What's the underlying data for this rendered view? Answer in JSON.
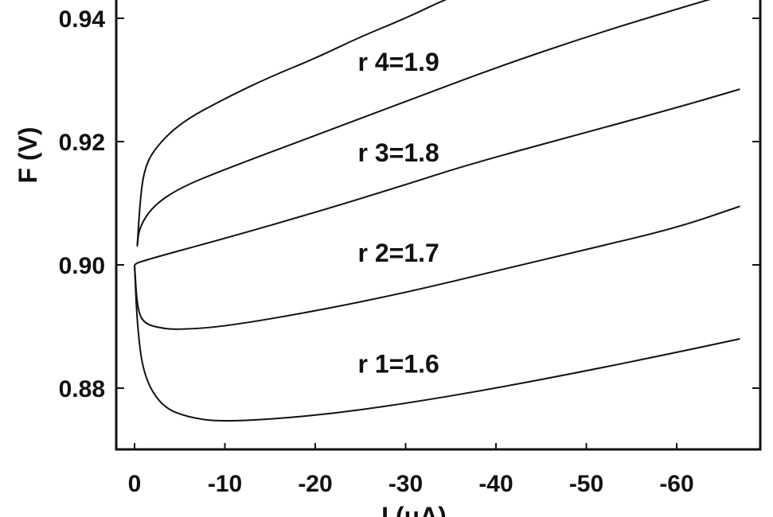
{
  "chart_data": {
    "type": "line",
    "title": "",
    "xlabel": "I (μA)",
    "ylabel": "F (V)",
    "xlim": [
      0,
      -70
    ],
    "ylim": [
      0.87,
      0.943
    ],
    "x_ticks": [
      "0",
      "-10",
      "-20",
      "-30",
      "-40",
      "-50",
      "-60"
    ],
    "x_tick_values": [
      0,
      -10,
      -20,
      -30,
      -40,
      -50,
      -60
    ],
    "y_ticks": [
      "0.88",
      "0.90",
      "0.92",
      "0.94"
    ],
    "y_tick_values": [
      0.88,
      0.9,
      0.92,
      0.94
    ],
    "grid": false,
    "line_color": "#111111",
    "series": [
      {
        "name": "r 1=1.6",
        "label_at": [
          -30,
          0.8825
        ],
        "points": [
          [
            0,
            0.9
          ],
          [
            -0.3,
            0.89
          ],
          [
            -1,
            0.882
          ],
          [
            -3,
            0.877
          ],
          [
            -6,
            0.8752
          ],
          [
            -10,
            0.8745
          ],
          [
            -20,
            0.8755
          ],
          [
            -30,
            0.8775
          ],
          [
            -40,
            0.88
          ],
          [
            -50,
            0.8828
          ],
          [
            -60,
            0.8858
          ],
          [
            -67,
            0.888
          ]
        ]
      },
      {
        "name": "r 2=1.7",
        "label_at": [
          -30,
          0.9005
        ],
        "points": [
          [
            0,
            0.9
          ],
          [
            -0.3,
            0.893
          ],
          [
            -1,
            0.8905
          ],
          [
            -3,
            0.8897
          ],
          [
            -5,
            0.8895
          ],
          [
            -10,
            0.89
          ],
          [
            -20,
            0.8925
          ],
          [
            -30,
            0.8955
          ],
          [
            -40,
            0.899
          ],
          [
            -50,
            0.9025
          ],
          [
            -60,
            0.906
          ],
          [
            -67,
            0.9095
          ]
        ]
      },
      {
        "name": "r 3=1.8",
        "label_at": [
          -30,
          0.9168
        ],
        "points": [
          [
            0,
            0.9
          ],
          [
            -0.5,
            0.9005
          ],
          [
            -10,
            0.9043
          ],
          [
            -20,
            0.9085
          ],
          [
            -30,
            0.913
          ],
          [
            -37,
            0.9163
          ],
          [
            -50,
            0.9215
          ],
          [
            -60,
            0.9255
          ],
          [
            -67,
            0.9285
          ]
        ]
      },
      {
        "name": "r 4=1.9",
        "label_at": [
          -30,
          0.9315
        ],
        "points": [
          [
            -0.3,
            0.903
          ],
          [
            -0.5,
            0.906
          ],
          [
            -2,
            0.9095
          ],
          [
            -5,
            0.9125
          ],
          [
            -10,
            0.9155
          ],
          [
            -20,
            0.921
          ],
          [
            -30,
            0.9265
          ],
          [
            -40,
            0.932
          ],
          [
            -50,
            0.937
          ],
          [
            -60,
            0.9415
          ],
          [
            -67,
            0.9445
          ]
        ]
      },
      {
        "name": "",
        "points": [
          [
            -0.3,
            0.903
          ],
          [
            -0.6,
            0.91
          ],
          [
            -1,
            0.915
          ],
          [
            -2,
            0.9185
          ],
          [
            -5,
            0.923
          ],
          [
            -10,
            0.927
          ],
          [
            -15,
            0.9305
          ],
          [
            -20,
            0.9335
          ],
          [
            -25,
            0.937
          ],
          [
            -30,
            0.94
          ],
          [
            -35,
            0.9435
          ],
          [
            -40,
            0.946
          ]
        ]
      }
    ]
  }
}
